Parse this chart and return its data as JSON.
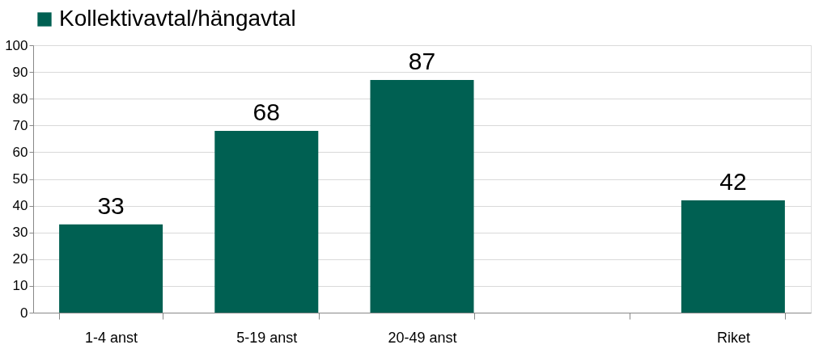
{
  "chart_data": {
    "type": "bar",
    "categories": [
      "1-4 anst",
      "5-19 anst",
      "20-49 anst",
      null,
      "Riket"
    ],
    "series": [
      {
        "name": "Kollektivavtal/hängavtal",
        "color": "#006052",
        "values": [
          33,
          68,
          87,
          null,
          42
        ]
      }
    ],
    "ylim": [
      0,
      100
    ],
    "yticks": [
      0,
      10,
      20,
      30,
      40,
      50,
      60,
      70,
      80,
      90,
      100
    ],
    "grid": "y",
    "legend": "top",
    "data_labels": true
  }
}
